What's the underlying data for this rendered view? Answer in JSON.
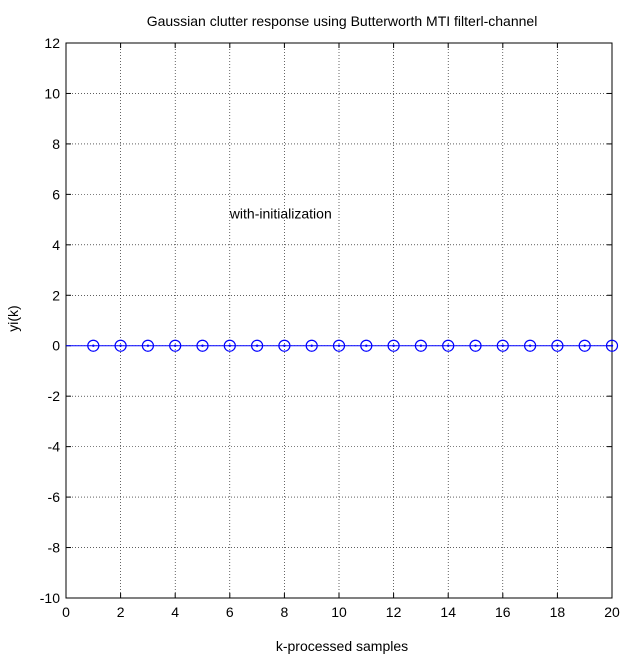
{
  "chart_data": {
    "type": "scatter",
    "title": "Gaussian clutter response using Butterworth MTI filterl-channel",
    "xlabel": "k-processed samples",
    "ylabel": "yi(k)",
    "xlim": [
      0,
      20
    ],
    "ylim": [
      -10,
      12
    ],
    "xticks": [
      0,
      2,
      4,
      6,
      8,
      10,
      12,
      14,
      16,
      18,
      20
    ],
    "yticks": [
      -10,
      -8,
      -6,
      -4,
      -2,
      0,
      2,
      4,
      6,
      8,
      10,
      12
    ],
    "grid": true,
    "marker": "circle-with-stem",
    "annotation": {
      "text": "with-initialization",
      "x": 6,
      "y": 5
    },
    "series": [
      {
        "color": "#0000ff",
        "x": [
          1,
          2,
          3,
          4,
          5,
          6,
          7,
          8,
          9,
          10,
          11,
          12,
          13,
          14,
          15,
          16,
          17,
          18,
          19,
          20
        ],
        "y": [
          0,
          0,
          0,
          0,
          0,
          0,
          0,
          0,
          0,
          0,
          0,
          0,
          0,
          0,
          0,
          0,
          0,
          0,
          0,
          0
        ]
      }
    ]
  }
}
